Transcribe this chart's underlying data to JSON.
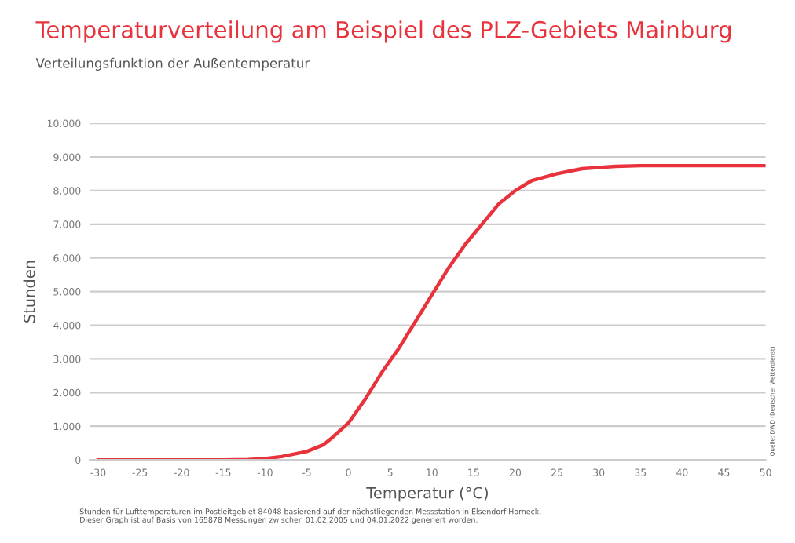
{
  "chart_data": {
    "type": "line",
    "title": "Temperaturverteilung am Beispiel des PLZ-Gebiets Mainburg",
    "subtitle": "Verteilungsfunktion der Außentemperatur",
    "xlabel": "Temperatur (°C)",
    "ylabel": "Stunden",
    "x": [
      -30,
      -20,
      -15,
      -12,
      -10,
      -8,
      -5,
      -3,
      -2,
      0,
      2,
      4,
      6,
      8,
      10,
      12,
      14,
      16,
      18,
      20,
      22,
      25,
      28,
      32,
      35,
      40,
      50
    ],
    "series": [
      {
        "color": "#e8323c",
        "values": [
          0,
          0,
          0,
          10,
          40,
          100,
          250,
          450,
          650,
          1100,
          1800,
          2600,
          3300,
          4100,
          4900,
          5700,
          6400,
          7000,
          7600,
          8000,
          8300,
          8500,
          8650,
          8720,
          8740,
          8740,
          8740
        ]
      }
    ],
    "xlim": [
      -31,
      50
    ],
    "xticks": [
      -30,
      -25,
      -20,
      -15,
      -10,
      -5,
      0,
      5,
      10,
      15,
      20,
      25,
      30,
      35,
      40,
      45,
      50
    ],
    "ylim": [
      0,
      10000
    ],
    "yticks": [
      0,
      {
        "value": 1000,
        "label": "1.000"
      },
      {
        "value": 2000,
        "label": "2.000"
      },
      {
        "value": 3000,
        "label": "3.000"
      },
      {
        "value": 4000,
        "label": "4.000"
      },
      {
        "value": 5000,
        "label": "5.000"
      },
      {
        "value": 6000,
        "label": "6.000"
      },
      {
        "value": 7000,
        "label": "7.000"
      },
      {
        "value": 8000,
        "label": "8.000"
      },
      {
        "value": 9000,
        "label": "9.000"
      },
      {
        "value": 10000,
        "label": "10.000"
      }
    ],
    "grid": "y",
    "marker": "none",
    "line_style": "solid",
    "annotations": [
      "Quelle: DWD (Deutscher Wetterdienst)",
      "Stunden für Lufttemperaturen im Postleitgebiet 84048 basierend auf der nächstliegenden Messstation in Elsendorf-Horneck.\nDieser Graph ist auf Basis von 165878 Messungen zwischen 01.02.2005 und 04.01.2022 generiert worden."
    ]
  }
}
